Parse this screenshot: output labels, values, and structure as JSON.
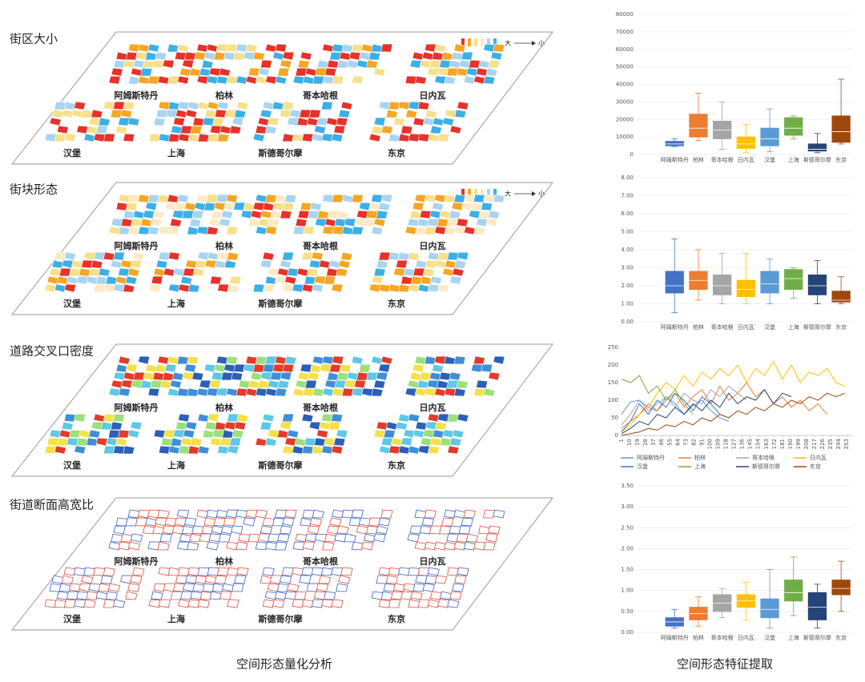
{
  "panels": [
    {
      "title": "街区大小",
      "cities": [
        "阿姆斯特丹",
        "柏林",
        "哥本哈根",
        "日内瓦",
        "汉堡",
        "上海",
        "斯德哥尔摩",
        "东京"
      ],
      "legend_from": "大",
      "legend_to": "小"
    },
    {
      "title": "街块形态",
      "cities": [
        "阿姆斯特丹",
        "柏林",
        "哥本哈根",
        "日内瓦",
        "汉堡",
        "上海",
        "斯德哥尔摩",
        "东京"
      ],
      "legend_from": "大",
      "legend_to": "小"
    },
    {
      "title": "道路交叉口密度",
      "cities": [
        "阿姆斯特丹",
        "柏林",
        "哥本哈根",
        "日内瓦",
        "汉堡",
        "上海",
        "斯德哥尔摩",
        "东京"
      ]
    },
    {
      "title": "街道断面高宽比",
      "cities": [
        "阿姆斯特丹",
        "柏林",
        "哥本哈根",
        "日内瓦",
        "汉堡",
        "上海",
        "斯德哥尔摩",
        "东京"
      ]
    }
  ],
  "captions": {
    "left": "空间形态量化分析",
    "right": "空间形态特征提取"
  },
  "chart_data": [
    {
      "type": "box",
      "categories": [
        "阿姆斯特丹",
        "柏林",
        "哥本哈根",
        "日内瓦",
        "汉堡",
        "上海",
        "斯德哥尔摩",
        "东京"
      ],
      "colors": [
        "#4472c4",
        "#ed7d31",
        "#a5a5a5",
        "#ffc000",
        "#5b9bd5",
        "#70ad47",
        "#264478",
        "#9e480e"
      ],
      "boxes": [
        {
          "min": 4500,
          "q1": 5000,
          "median": 6000,
          "q3": 7500,
          "max": 9000
        },
        {
          "min": 8000,
          "q1": 10000,
          "median": 15000,
          "q3": 23000,
          "max": 35000
        },
        {
          "min": 3000,
          "q1": 9000,
          "median": 14000,
          "q3": 19000,
          "max": 30000
        },
        {
          "min": 1000,
          "q1": 3500,
          "median": 6000,
          "q3": 10000,
          "max": 17000
        },
        {
          "min": 1500,
          "q1": 5000,
          "median": 9000,
          "q3": 15000,
          "max": 26000
        },
        {
          "min": 9000,
          "q1": 11000,
          "median": 15000,
          "q3": 21000,
          "max": 22000
        },
        {
          "min": 1000,
          "q1": 2000,
          "median": 3000,
          "q3": 6000,
          "max": 12000
        },
        {
          "min": 6000,
          "q1": 7000,
          "median": 13000,
          "q3": 22000,
          "max": 43000
        }
      ],
      "ylim": [
        0,
        80000
      ],
      "yticks": [
        0,
        10000,
        20000,
        30000,
        40000,
        50000,
        60000,
        70000,
        80000
      ],
      "grid": true
    },
    {
      "type": "box",
      "categories": [
        "阿姆斯特丹",
        "柏林",
        "哥本哈根",
        "日内瓦",
        "汉堡",
        "上海",
        "斯德哥尔摩",
        "东京"
      ],
      "colors": [
        "#4472c4",
        "#ed7d31",
        "#a5a5a5",
        "#ffc000",
        "#5b9bd5",
        "#70ad47",
        "#264478",
        "#9e480e"
      ],
      "boxes": [
        {
          "min": 0.5,
          "q1": 1.6,
          "median": 2.0,
          "q3": 2.8,
          "max": 4.6
        },
        {
          "min": 1.2,
          "q1": 1.8,
          "median": 2.3,
          "q3": 2.8,
          "max": 4.0
        },
        {
          "min": 1.0,
          "q1": 1.5,
          "median": 2.0,
          "q3": 2.6,
          "max": 3.8
        },
        {
          "min": 1.0,
          "q1": 1.4,
          "median": 1.8,
          "q3": 2.3,
          "max": 3.8
        },
        {
          "min": 1.0,
          "q1": 1.6,
          "median": 2.1,
          "q3": 2.8,
          "max": 3.5
        },
        {
          "min": 1.3,
          "q1": 1.8,
          "median": 2.4,
          "q3": 2.9,
          "max": 3.0
        },
        {
          "min": 1.0,
          "q1": 1.5,
          "median": 2.0,
          "q3": 2.6,
          "max": 3.4
        },
        {
          "min": 1.0,
          "q1": 1.1,
          "median": 1.2,
          "q3": 1.7,
          "max": 2.5
        }
      ],
      "ylim": [
        0,
        8
      ],
      "yticks": [
        {
          "value": 0,
          "label": "0.00"
        },
        {
          "value": 1,
          "label": "1.00"
        },
        {
          "value": 2,
          "label": "2.00"
        },
        {
          "value": 3,
          "label": "3.00"
        },
        {
          "value": 4,
          "label": "4.00"
        },
        {
          "value": 5,
          "label": "5.00"
        },
        {
          "value": 6,
          "label": "6.00"
        },
        {
          "value": 7,
          "label": "7.00"
        },
        {
          "value": 8,
          "label": "8.00"
        }
      ],
      "grid": true
    },
    {
      "type": "line",
      "x": [
        1,
        11,
        21,
        31,
        41,
        51,
        61,
        71,
        81,
        91,
        101,
        111,
        121,
        131,
        141,
        151,
        161,
        171,
        181,
        191,
        201,
        211,
        221,
        231,
        241,
        251
      ],
      "xlim": [
        1,
        260
      ],
      "xticks": [
        1,
        10,
        19,
        28,
        37,
        46,
        55,
        64,
        73,
        82,
        91,
        100,
        109,
        118,
        127,
        136,
        145,
        154,
        163,
        172,
        181,
        190,
        199,
        208,
        217,
        226,
        235,
        244,
        253
      ],
      "ylim": [
        0,
        250
      ],
      "yticks": [
        0,
        50,
        100,
        150,
        200,
        250
      ],
      "series": [
        {
          "name": "阿姆斯特丹",
          "color": "#5b9bd5",
          "values": [
            60,
            95,
            100,
            80,
            70,
            110,
            90,
            60,
            85,
            100,
            70,
            50,
            40,
            null,
            null,
            null,
            null,
            null,
            null,
            null,
            null,
            null,
            null,
            null,
            null,
            null
          ]
        },
        {
          "name": "柏林",
          "color": "#ed7d31",
          "values": [
            20,
            40,
            60,
            90,
            70,
            100,
            120,
            80,
            110,
            130,
            90,
            140,
            100,
            120,
            150,
            110,
            130,
            90,
            110,
            80,
            100,
            70,
            90,
            60,
            null,
            null
          ]
        },
        {
          "name": "哥本哈根",
          "color": "#a5a5a5",
          "values": [
            30,
            60,
            100,
            70,
            90,
            110,
            80,
            120,
            100,
            90,
            130,
            110,
            140,
            120,
            100,
            null,
            null,
            null,
            null,
            null,
            null,
            null,
            null,
            null,
            null,
            null
          ]
        },
        {
          "name": "日内瓦",
          "color": "#ffc000",
          "values": [
            10,
            30,
            60,
            80,
            120,
            150,
            130,
            170,
            140,
            180,
            160,
            190,
            170,
            200,
            150,
            190,
            170,
            210,
            160,
            200,
            150,
            180,
            170,
            190,
            150,
            140
          ]
        },
        {
          "name": "汉堡",
          "color": "#4472c4",
          "values": [
            10,
            40,
            90,
            60,
            100,
            80,
            120,
            100,
            70,
            110,
            90,
            60,
            null,
            null,
            null,
            null,
            null,
            null,
            null,
            null,
            null,
            null,
            null,
            null,
            null,
            null
          ]
        },
        {
          "name": "上海",
          "color": "#70ad47",
          "values": [
            160,
            150,
            170,
            120,
            140,
            100,
            130,
            90,
            60,
            null,
            null,
            null,
            null,
            null,
            null,
            null,
            null,
            null,
            null,
            null,
            null,
            null,
            null,
            null,
            null,
            null
          ]
        },
        {
          "name": "斯德哥尔摩",
          "color": "#264478",
          "values": [
            5,
            20,
            40,
            30,
            60,
            50,
            80,
            60,
            90,
            70,
            100,
            80,
            120,
            90,
            110,
            100,
            130,
            90,
            120,
            110,
            null,
            null,
            null,
            null,
            null,
            null
          ]
        },
        {
          "name": "东京",
          "color": "#9e480e",
          "values": [
            0,
            5,
            10,
            20,
            15,
            30,
            25,
            40,
            30,
            50,
            40,
            60,
            50,
            70,
            60,
            80,
            70,
            90,
            80,
            100,
            90,
            110,
            100,
            120,
            110,
            120
          ]
        }
      ]
    },
    {
      "type": "box",
      "categories": [
        "阿姆斯特丹",
        "柏林",
        "哥本哈根",
        "日内瓦",
        "汉堡",
        "上海",
        "斯德哥尔摩",
        "东京"
      ],
      "colors": [
        "#4472c4",
        "#ed7d31",
        "#a5a5a5",
        "#ffc000",
        "#5b9bd5",
        "#70ad47",
        "#264478",
        "#9e480e"
      ],
      "boxes": [
        {
          "min": 0.1,
          "q1": 0.15,
          "median": 0.25,
          "q3": 0.35,
          "max": 0.55
        },
        {
          "min": 0.15,
          "q1": 0.3,
          "median": 0.45,
          "q3": 0.6,
          "max": 0.85
        },
        {
          "min": 0.35,
          "q1": 0.5,
          "median": 0.7,
          "q3": 0.9,
          "max": 1.05
        },
        {
          "min": 0.3,
          "q1": 0.6,
          "median": 0.75,
          "q3": 0.9,
          "max": 1.2
        },
        {
          "min": 0.1,
          "q1": 0.35,
          "median": 0.55,
          "q3": 0.8,
          "max": 1.5
        },
        {
          "min": 0.4,
          "q1": 0.75,
          "median": 0.95,
          "q3": 1.25,
          "max": 1.8
        },
        {
          "min": 0.1,
          "q1": 0.3,
          "median": 0.6,
          "q3": 0.95,
          "max": 1.15
        },
        {
          "min": 0.5,
          "q1": 0.9,
          "median": 1.05,
          "q3": 1.25,
          "max": 1.7
        }
      ],
      "ylim": [
        0,
        3.5
      ],
      "yticks": [
        {
          "value": 0,
          "label": "0.00"
        },
        {
          "value": 0.5,
          "label": "0.50"
        },
        {
          "value": 1,
          "label": "1.00"
        },
        {
          "value": 1.5,
          "label": "1.50"
        },
        {
          "value": 2,
          "label": "2.00"
        },
        {
          "value": 2.5,
          "label": "2.50"
        },
        {
          "value": 3,
          "label": "3.00"
        },
        {
          "value": 3.5,
          "label": "3.50"
        }
      ],
      "grid": true
    }
  ]
}
